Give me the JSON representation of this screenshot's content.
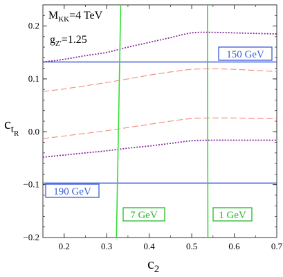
{
  "chart_data": {
    "type": "line",
    "title": "",
    "xlabel": "c",
    "xlabel_sub": "2",
    "ylabel": "c",
    "ylabel_sub": "t",
    "ylabel_subsub": "R",
    "xlim": [
      0.15,
      0.7
    ],
    "ylim": [
      -0.2,
      0.24
    ],
    "x_ticks": [
      0.2,
      0.3,
      0.4,
      0.5,
      0.6,
      0.7
    ],
    "x_tick_labels": [
      "0.2",
      "0.3",
      "0.4",
      "0.5",
      "0.6",
      "0.7"
    ],
    "y_ticks": [
      -0.2,
      -0.1,
      0.0,
      0.1,
      0.2
    ],
    "y_tick_labels": [
      "−0.2",
      "−0.1",
      "0.0",
      "0.1",
      "0.2"
    ],
    "grid": false,
    "annotations": {
      "mkk_label": "M",
      "mkk_sub": "KK",
      "mkk_value": "=4 TeV",
      "gz_label": "g",
      "gz_sub": "Z'",
      "gz_value": "=1.25"
    },
    "horizontal_lines": [
      {
        "y": 0.132,
        "label": "150 GeV",
        "color": "#3b5bdb"
      },
      {
        "y": -0.097,
        "label": "190 GeV",
        "color": "#3b5bdb"
      }
    ],
    "vertical_lines": [
      {
        "x_top": 0.333,
        "x_bottom": 0.323,
        "label": "7 GeV",
        "color": "#33dd33"
      },
      {
        "x_top": 0.537,
        "x_bottom": 0.538,
        "label": "1 GeV",
        "color": "#33dd33"
      }
    ],
    "series": [
      {
        "style": "dotted",
        "color": "#8b2b9e",
        "x": [
          0.15,
          0.2,
          0.25,
          0.3,
          0.35,
          0.4,
          0.45,
          0.5,
          0.55,
          0.6,
          0.65,
          0.7
        ],
        "y": [
          0.132,
          0.137,
          0.144,
          0.15,
          0.16,
          0.169,
          0.178,
          0.187,
          0.188,
          0.187,
          0.186,
          0.185
        ]
      },
      {
        "style": "dashed",
        "color": "#f08b78",
        "x": [
          0.15,
          0.2,
          0.25,
          0.3,
          0.35,
          0.4,
          0.45,
          0.5,
          0.55,
          0.6,
          0.65,
          0.7
        ],
        "y": [
          0.076,
          0.081,
          0.087,
          0.093,
          0.1,
          0.107,
          0.113,
          0.118,
          0.119,
          0.118,
          0.116,
          0.114
        ]
      },
      {
        "style": "dashed",
        "color": "#f08b78",
        "x": [
          0.15,
          0.2,
          0.25,
          0.3,
          0.35,
          0.4,
          0.45,
          0.5,
          0.55,
          0.6,
          0.65,
          0.7
        ],
        "y": [
          -0.013,
          -0.008,
          -0.003,
          0.002,
          0.008,
          0.014,
          0.02,
          0.025,
          0.026,
          0.026,
          0.025,
          0.025
        ]
      },
      {
        "style": "dotted",
        "color": "#8b2b9e",
        "x": [
          0.15,
          0.2,
          0.25,
          0.3,
          0.35,
          0.4,
          0.45,
          0.5,
          0.55,
          0.6,
          0.65,
          0.7
        ],
        "y": [
          -0.048,
          -0.044,
          -0.04,
          -0.036,
          -0.031,
          -0.027,
          -0.022,
          -0.017,
          -0.016,
          -0.016,
          -0.016,
          -0.016
        ]
      }
    ]
  }
}
